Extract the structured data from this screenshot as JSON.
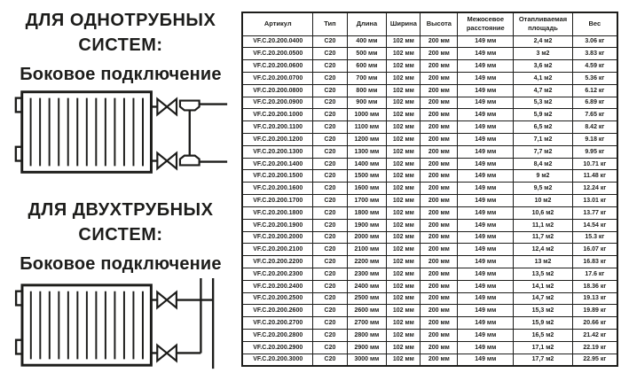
{
  "colors": {
    "ink": "#1d1d1b",
    "background": "#ffffff"
  },
  "left_panel": {
    "sections": [
      {
        "title": "ДЛЯ ОДНОТРУБНЫХ СИСТЕМ:",
        "subtitle": "Боковое подключение",
        "diagram": "single-pipe-side-connection"
      },
      {
        "title": "ДЛЯ ДВУХТРУБНЫХ СИСТЕМ:",
        "subtitle": "Боковое подключение",
        "diagram": "two-pipe-side-connection"
      }
    ]
  },
  "table": {
    "headers": [
      "Артикул",
      "Тип",
      "Длина",
      "Ширина",
      "Высота",
      "Межосевое расстояние",
      "Отапливаемая площадь",
      "Вес"
    ],
    "rows": [
      [
        "VF.C.20.200.0400",
        "C20",
        "400 мм",
        "102 мм",
        "200 мм",
        "149 мм",
        "2,4 м2",
        "3.06 кг"
      ],
      [
        "VF.C.20.200.0500",
        "C20",
        "500 мм",
        "102 мм",
        "200 мм",
        "149 мм",
        "3 м2",
        "3.83 кг"
      ],
      [
        "VF.C.20.200.0600",
        "C20",
        "600 мм",
        "102 мм",
        "200 мм",
        "149 мм",
        "3,6 м2",
        "4.59 кг"
      ],
      [
        "VF.C.20.200.0700",
        "C20",
        "700 мм",
        "102 мм",
        "200 мм",
        "149 мм",
        "4,1 м2",
        "5.36 кг"
      ],
      [
        "VF.C.20.200.0800",
        "C20",
        "800 мм",
        "102 мм",
        "200 мм",
        "149 мм",
        "4,7 м2",
        "6.12 кг"
      ],
      [
        "VF.C.20.200.0900",
        "C20",
        "900 мм",
        "102 мм",
        "200 мм",
        "149 мм",
        "5,3 м2",
        "6.89 кг"
      ],
      [
        "VF.C.20.200.1000",
        "C20",
        "1000 мм",
        "102 мм",
        "200 мм",
        "149 мм",
        "5,9 м2",
        "7.65 кг"
      ],
      [
        "VF.C.20.200.1100",
        "C20",
        "1100 мм",
        "102 мм",
        "200 мм",
        "149 мм",
        "6,5 м2",
        "8.42 кг"
      ],
      [
        "VF.C.20.200.1200",
        "C20",
        "1200 мм",
        "102 мм",
        "200 мм",
        "149 мм",
        "7,1 м2",
        "9.18 кг"
      ],
      [
        "VF.C.20.200.1300",
        "C20",
        "1300 мм",
        "102 мм",
        "200 мм",
        "149 мм",
        "7,7 м2",
        "9.95 кг"
      ],
      [
        "VF.C.20.200.1400",
        "C20",
        "1400 мм",
        "102 мм",
        "200 мм",
        "149 мм",
        "8,4 м2",
        "10.71 кг"
      ],
      [
        "VF.C.20.200.1500",
        "C20",
        "1500 мм",
        "102 мм",
        "200 мм",
        "149 мм",
        "9 м2",
        "11.48 кг"
      ],
      [
        "VF.C.20.200.1600",
        "C20",
        "1600 мм",
        "102 мм",
        "200 мм",
        "149 мм",
        "9,5 м2",
        "12.24 кг"
      ],
      [
        "VF.C.20.200.1700",
        "C20",
        "1700 мм",
        "102 мм",
        "200 мм",
        "149 мм",
        "10 м2",
        "13.01 кг"
      ],
      [
        "VF.C.20.200.1800",
        "C20",
        "1800 мм",
        "102 мм",
        "200 мм",
        "149 мм",
        "10,6 м2",
        "13.77 кг"
      ],
      [
        "VF.C.20.200.1900",
        "C20",
        "1900 мм",
        "102 мм",
        "200 мм",
        "149 мм",
        "11,1 м2",
        "14.54 кг"
      ],
      [
        "VF.C.20.200.2000",
        "C20",
        "2000 мм",
        "102 мм",
        "200 мм",
        "149 мм",
        "11,7 м2",
        "15.3 кг"
      ],
      [
        "VF.C.20.200.2100",
        "C20",
        "2100 мм",
        "102 мм",
        "200 мм",
        "149 мм",
        "12,4 м2",
        "16.07 кг"
      ],
      [
        "VF.C.20.200.2200",
        "C20",
        "2200 мм",
        "102 мм",
        "200 мм",
        "149 мм",
        "13 м2",
        "16.83 кг"
      ],
      [
        "VF.C.20.200.2300",
        "C20",
        "2300 мм",
        "102 мм",
        "200 мм",
        "149 мм",
        "13,5 м2",
        "17.6 кг"
      ],
      [
        "VF.C.20.200.2400",
        "C20",
        "2400 мм",
        "102 мм",
        "200 мм",
        "149 мм",
        "14,1 м2",
        "18.36 кг"
      ],
      [
        "VF.C.20.200.2500",
        "C20",
        "2500 мм",
        "102 мм",
        "200 мм",
        "149 мм",
        "14,7 м2",
        "19.13 кг"
      ],
      [
        "VF.C.20.200.2600",
        "C20",
        "2600 мм",
        "102 мм",
        "200 мм",
        "149 мм",
        "15,3 м2",
        "19.89 кг"
      ],
      [
        "VF.C.20.200.2700",
        "C20",
        "2700 мм",
        "102 мм",
        "200 мм",
        "149 мм",
        "15,9 м2",
        "20.66 кг"
      ],
      [
        "VF.C.20.200.2800",
        "C20",
        "2800 мм",
        "102 мм",
        "200 мм",
        "149 мм",
        "16,5 м2",
        "21.42 кг"
      ],
      [
        "VF.C.20.200.2900",
        "C20",
        "2900 мм",
        "102 мм",
        "200 мм",
        "149 мм",
        "17,1 м2",
        "22.19 кг"
      ],
      [
        "VF.C.20.200.3000",
        "C20",
        "3000 мм",
        "102 мм",
        "200 мм",
        "149 мм",
        "17,7 м2",
        "22.95 кг"
      ]
    ]
  }
}
